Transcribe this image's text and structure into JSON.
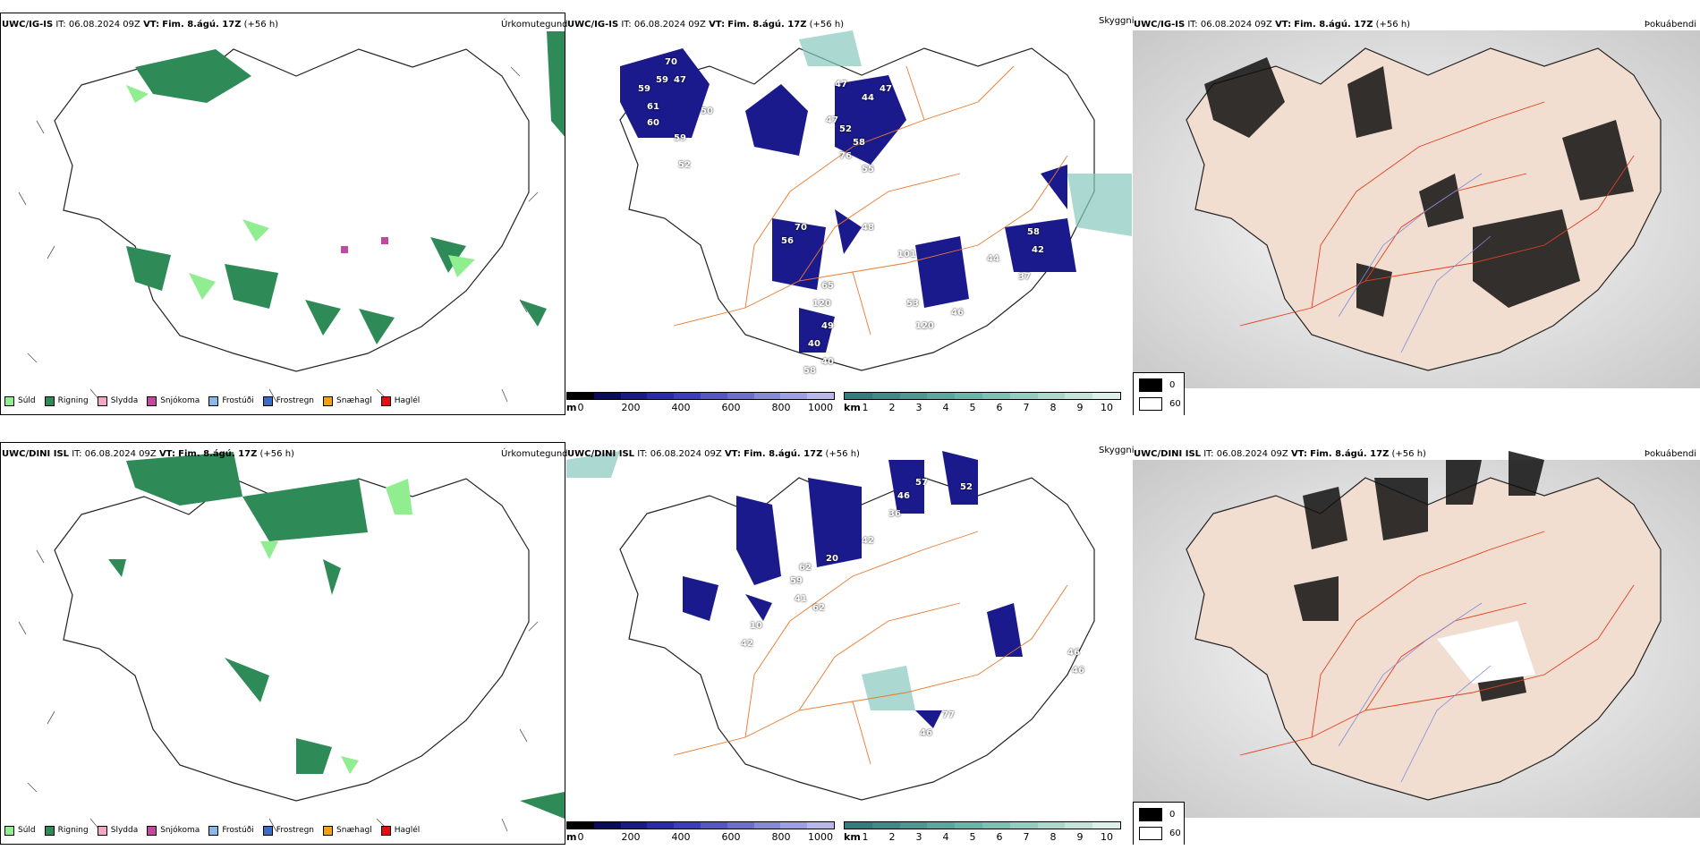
{
  "figure": {
    "rows": [
      {
        "model": "UWC/IG-IS",
        "it_label": "IT:",
        "it_value": "06.08.2024 09Z",
        "vt_label": "VT:",
        "vt_value": "Fim. 8.ágú. 17Z",
        "lead": "(+56 h)",
        "precip_title": "Úrkomutegund",
        "cloud_title": "Skyggni",
        "fog_title": "Þokuábendi",
        "visibility_labels": [
          "70",
          "59",
          "47",
          "59",
          "61",
          "60",
          "50",
          "59",
          "52",
          "47",
          "44",
          "47",
          "47",
          "52",
          "58",
          "76",
          "55",
          "70",
          "56",
          "48",
          "101",
          "44",
          "42",
          "58",
          "37",
          "65",
          "120",
          "49",
          "40",
          "40",
          "58",
          "53",
          "120",
          "46"
        ]
      },
      {
        "model": "UWC/DINI ISL",
        "it_label": "IT:",
        "it_value": "06.08.2024 09Z",
        "vt_label": "VT:",
        "vt_value": "Fim. 8.ágú. 17Z",
        "lead": "(+56 h)",
        "precip_title": "Úrkomutegund",
        "cloud_title": "Skyggni",
        "fog_title": "Þokuábendi",
        "visibility_labels": [
          "57",
          "46",
          "36",
          "52",
          "42",
          "20",
          "62",
          "59",
          "41",
          "62",
          "10",
          "42",
          "46",
          "46",
          "77",
          "46"
        ]
      }
    ],
    "precip_legend": [
      {
        "label": "Súld",
        "color": "#90ee90"
      },
      {
        "label": "Rigning",
        "color": "#2e8b57"
      },
      {
        "label": "Slydda",
        "color": "#f4a6c8"
      },
      {
        "label": "Snjókoma",
        "color": "#c04aa0"
      },
      {
        "label": "Frostúði",
        "color": "#87b8e8"
      },
      {
        "label": "Frostregn",
        "color": "#3a6fc0"
      },
      {
        "label": "Snæhagl",
        "color": "#f0a020"
      },
      {
        "label": "Haglél",
        "color": "#e01010"
      }
    ],
    "elevation_bar": {
      "unit": "m",
      "ticks": [
        "0",
        "200",
        "400",
        "600",
        "800",
        "1000"
      ],
      "colors": [
        "#000000",
        "#0a0a5e",
        "#1a1a8c",
        "#2a2ab0",
        "#3c3cc0",
        "#5656c8",
        "#6e6ed0",
        "#8888d8",
        "#a0a0e0",
        "#b8b8e8"
      ]
    },
    "cloudbase_bar": {
      "unit": "km",
      "ticks": [
        "1",
        "2",
        "3",
        "4",
        "5",
        "6",
        "7",
        "8",
        "9",
        "10"
      ],
      "colors": [
        "#2f7f7f",
        "#3c8c88",
        "#4a9a92",
        "#5aa79c",
        "#6cb3a8",
        "#80bfb4",
        "#96cbc0",
        "#acd7cd",
        "#c4e3db",
        "#dcefe9"
      ]
    },
    "fog_legend": [
      {
        "value": "0",
        "color": "#000000"
      },
      {
        "value": "60",
        "color": "#ffffff"
      }
    ],
    "colors": {
      "land_fog": "#f2ded0",
      "roads": "#e87a2e",
      "rivers": "#7a8ae0",
      "precip_rain": "#2e8b57",
      "precip_drizzle": "#90ee90"
    }
  }
}
